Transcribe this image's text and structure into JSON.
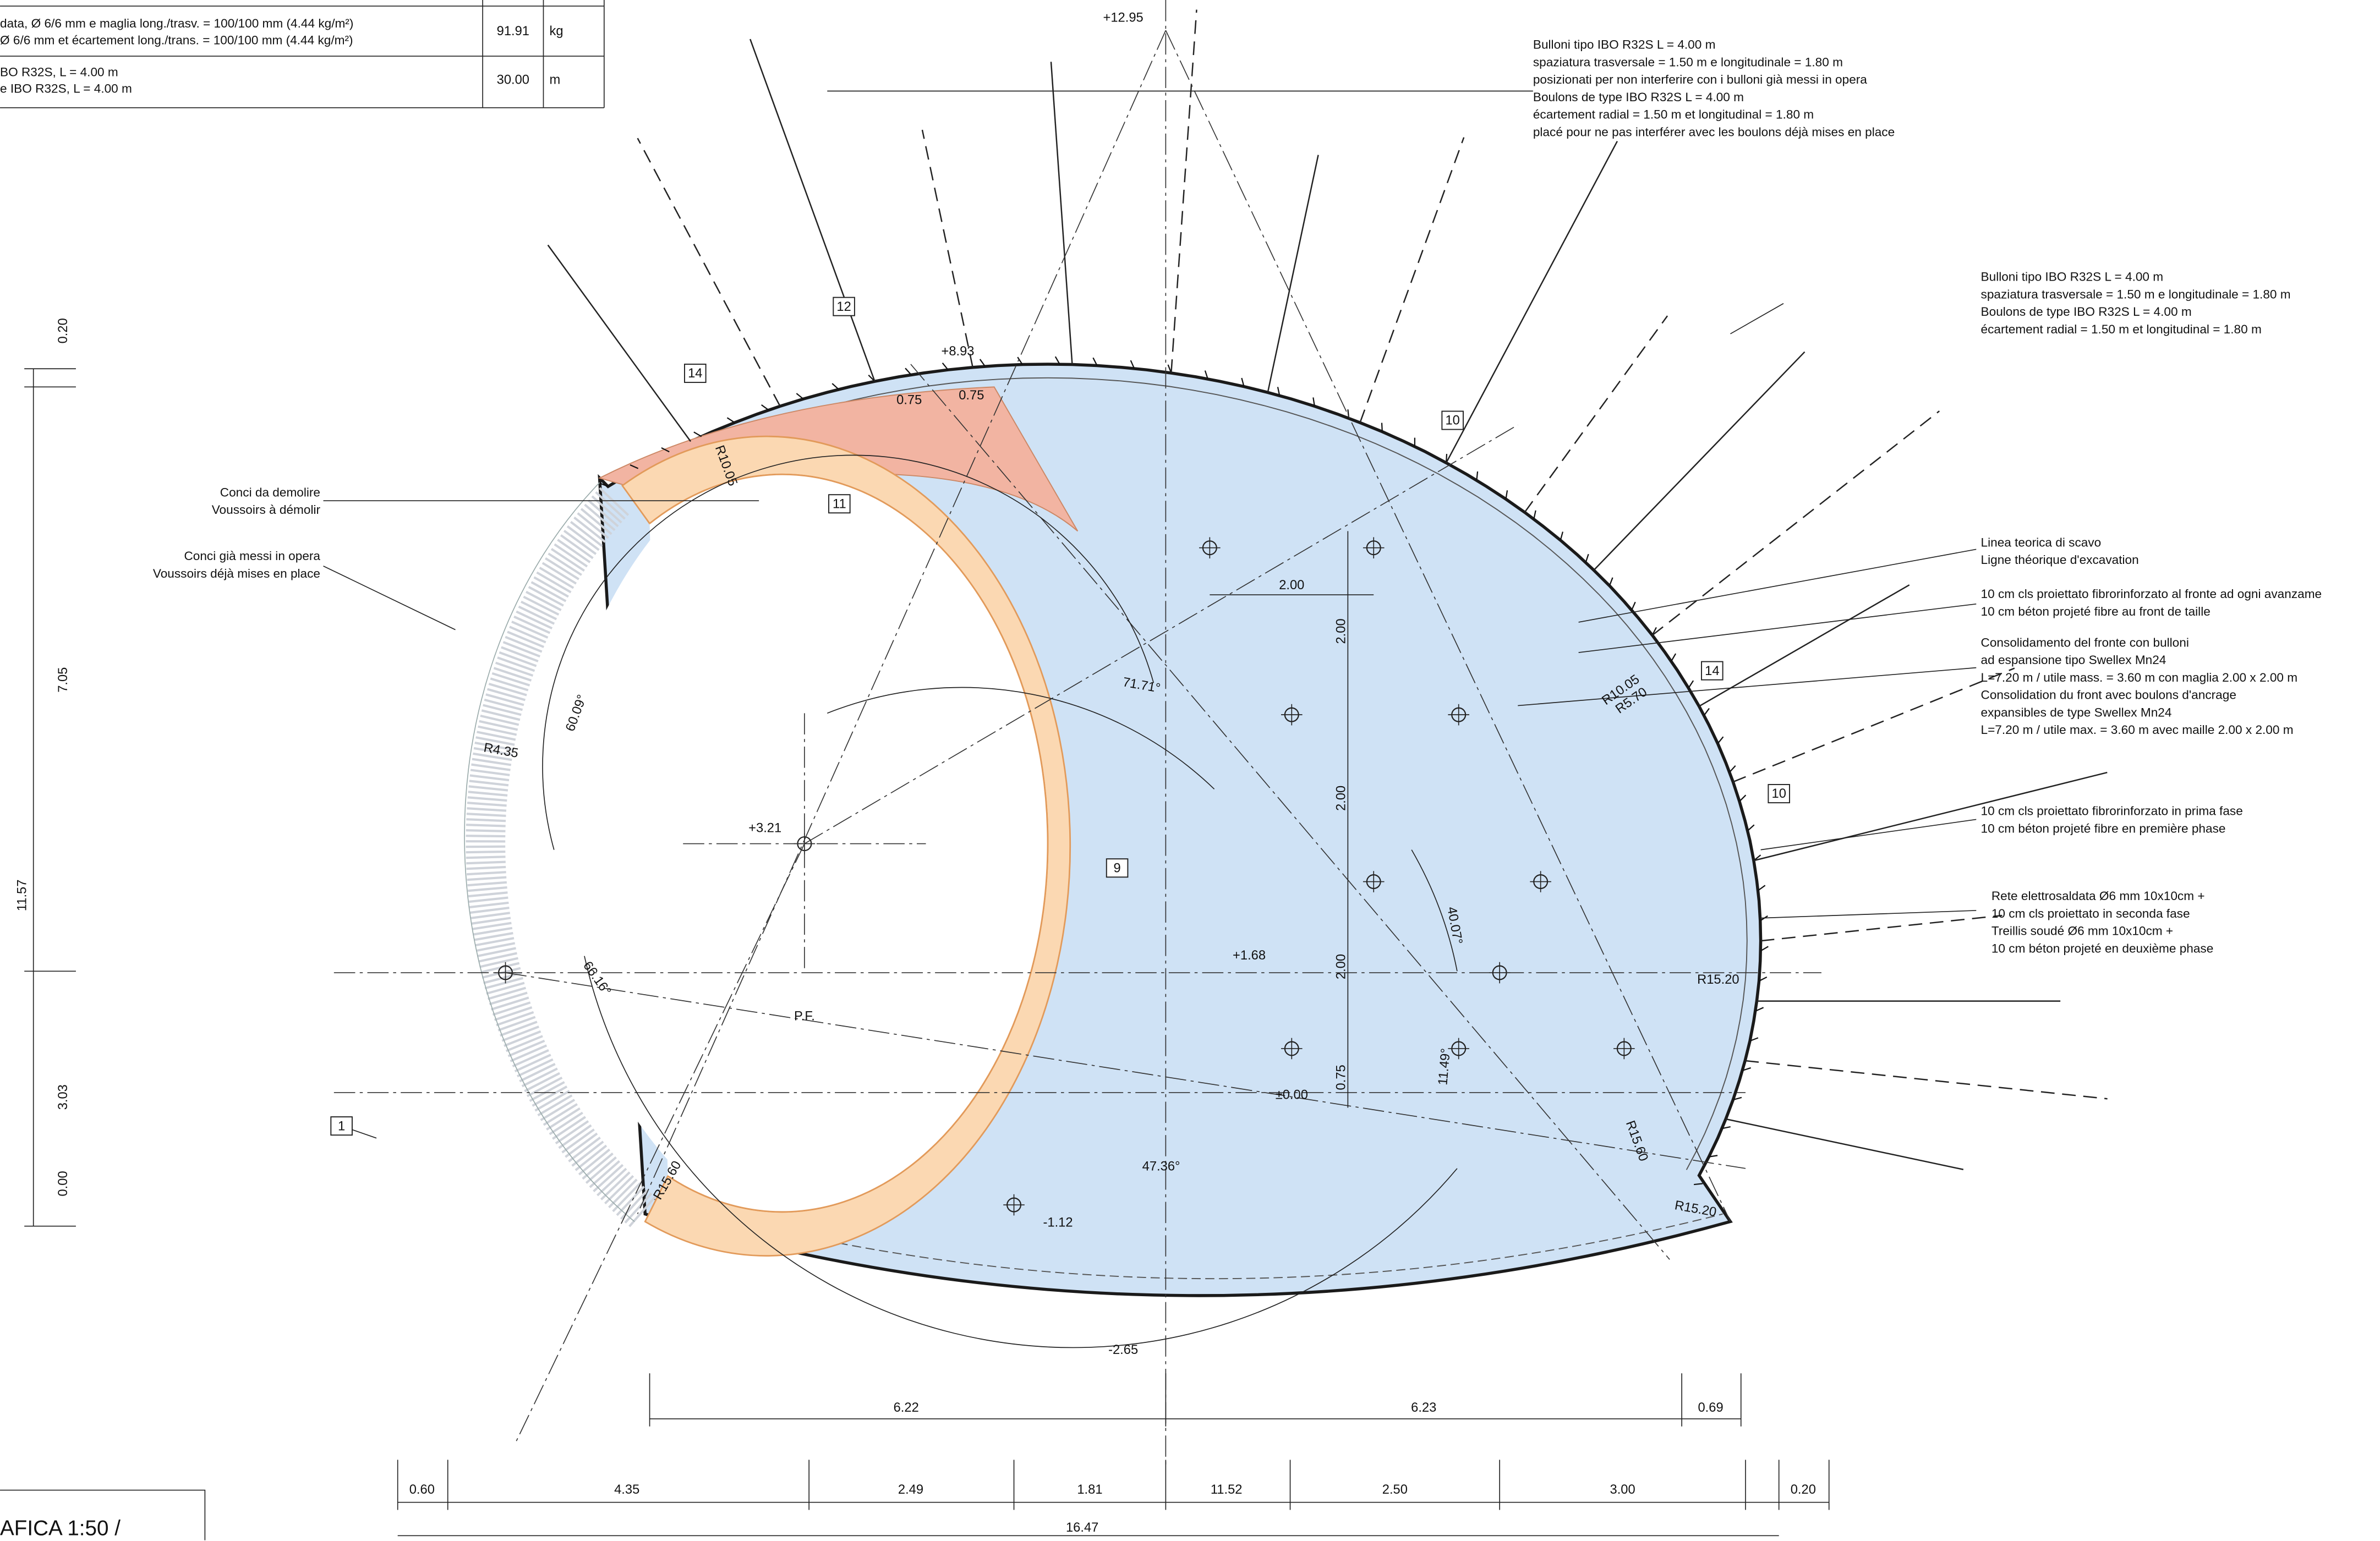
{
  "table": {
    "rows": [
      {
        "lines": [
          "data, Ø 6/6 mm e maglia long./trasv. = 100/100 mm (4.44 kg/m²)",
          "Ø 6/6 mm et écartement long./trans. = 100/100 mm (4.44 kg/m²)"
        ],
        "quantity": "91.91",
        "unit": "kg"
      },
      {
        "lines": [
          "BO R32S, L = 4.00 m",
          "e IBO R32S, L = 4.00 m"
        ],
        "quantity": "30.00",
        "unit": "m"
      }
    ]
  },
  "notes": [
    {
      "lines": [
        "Bulloni tipo IBO R32S L = 4.00 m",
        "spaziatura trasversale = 1.50 m e longitudinale = 1.80 m",
        "posizionati per non interferire con i bulloni già messi in opera",
        "Boulons de type IBO R32S L = 4.00 m",
        "écartement radial = 1.50 m et longitudinal = 1.80 m",
        "placé pour ne pas interférer avec les boulons déjà mises en place"
      ]
    },
    {
      "lines": [
        "Bulloni tipo IBO R32S L = 4.00 m",
        "spaziatura trasversale = 1.50 m e longitudinale = 1.80 m",
        "Boulons de type IBO R32S L = 4.00 m",
        "écartement radial = 1.50 m et longitudinal = 1.80 m"
      ]
    },
    {
      "lines": [
        "Linea teorica di scavo",
        "Ligne théorique d'excavation"
      ]
    },
    {
      "lines": [
        "10 cm cls proiettato fibrorinforzato al fronte ad ogni avanzame",
        "10 cm béton projeté fibre au front de taille"
      ]
    },
    {
      "lines": [
        "Consolidamento del fronte con bulloni",
        "ad espansione tipo Swellex Mn24",
        "L=7.20 m / utile mass. = 3.60 m con maglia 2.00 x 2.00 m",
        "Consolidation du front avec boulons d'ancrage",
        "expansibles de type Swellex Mn24",
        "L=7.20 m / utile max. = 3.60 m avec maille 2.00 x 2.00 m"
      ]
    },
    {
      "lines": [
        "10 cm cls proiettato fibrorinforzato in prima fase",
        "10 cm béton projeté fibre en première phase"
      ]
    },
    {
      "lines": [
        "Rete elettrosaldata Ø6 mm 10x10cm +",
        "10 cm cls proiettato in seconda fase",
        "Treillis soudé Ø6 mm 10x10cm +",
        "10 cm béton projeté en deuxième phase"
      ]
    },
    {
      "lines": [
        "Conci da demolire",
        "Voussoirs à démolir"
      ]
    },
    {
      "lines": [
        "Conci già messi in opera",
        "Voussoirs déjà mises en place"
      ]
    }
  ],
  "callouts": [
    "12",
    "14",
    "11",
    "10",
    "14",
    "10",
    "9",
    "1"
  ],
  "elevations": [
    "+12.95",
    "+8.93",
    "+3.21",
    "+1.68",
    "±0.00",
    "-1.12",
    "-2.65",
    "P.F."
  ],
  "angles": [
    "60.09°",
    "71.71°",
    "66.16°",
    "40.07°",
    "11.49°",
    "47.36°"
  ],
  "radii": [
    "R10.05",
    "R4.35",
    "R15.60",
    "R10.05",
    "R5.70",
    "R15.20",
    "R15.60",
    "R15.20"
  ],
  "inner_dimensions": [
    "0.75",
    "0.75",
    "2.00",
    "2.00",
    "2.00",
    "2.00",
    "0.75"
  ],
  "left_dimensions": [
    "0.20",
    "7.05",
    "11.57",
    "3.03",
    "0.00"
  ],
  "bottom_dimensions": {
    "row1": [
      "6.22",
      "6.23",
      "0.69"
    ],
    "row2": [
      "0.60",
      "4.35",
      "2.49",
      "1.81",
      "11.52",
      "2.50",
      "3.00",
      "0.20"
    ],
    "total": "16.47"
  },
  "title_fragment": "AFICA 1:50 /"
}
